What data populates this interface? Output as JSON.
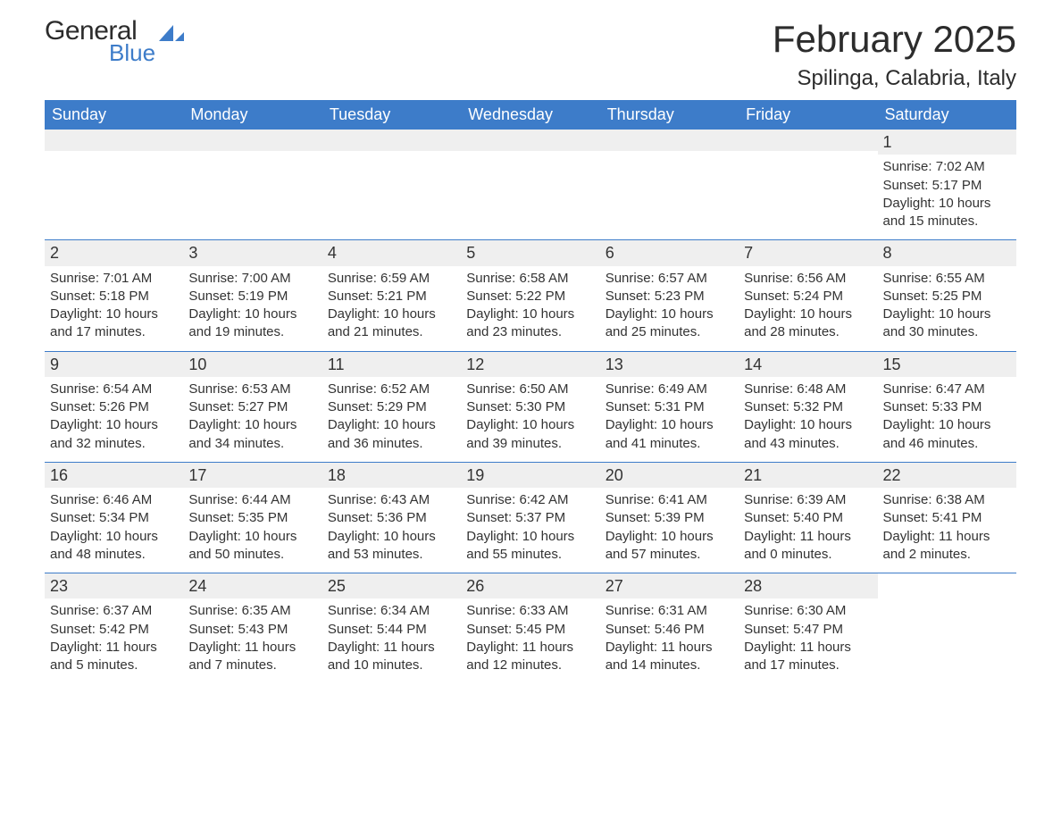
{
  "brand": {
    "general": "General",
    "blue": "Blue",
    "accent_color": "#3d7cc9"
  },
  "header": {
    "month_title": "February 2025",
    "location": "Spilinga, Calabria, Italy"
  },
  "styling": {
    "header_bg": "#3d7cc9",
    "header_text": "#ffffff",
    "daynum_bg": "#efefef",
    "week_border": "#3d7cc9",
    "body_text": "#333333",
    "page_bg": "#ffffff",
    "title_fontsize": 42,
    "location_fontsize": 24,
    "weekday_fontsize": 18,
    "daynum_fontsize": 18,
    "body_fontsize": 15
  },
  "weekdays": [
    "Sunday",
    "Monday",
    "Tuesday",
    "Wednesday",
    "Thursday",
    "Friday",
    "Saturday"
  ],
  "weeks": [
    [
      {
        "empty": true
      },
      {
        "empty": true
      },
      {
        "empty": true
      },
      {
        "empty": true
      },
      {
        "empty": true
      },
      {
        "empty": true
      },
      {
        "num": "1",
        "sunrise": "Sunrise: 7:02 AM",
        "sunset": "Sunset: 5:17 PM",
        "day1": "Daylight: 10 hours",
        "day2": "and 15 minutes."
      }
    ],
    [
      {
        "num": "2",
        "sunrise": "Sunrise: 7:01 AM",
        "sunset": "Sunset: 5:18 PM",
        "day1": "Daylight: 10 hours",
        "day2": "and 17 minutes."
      },
      {
        "num": "3",
        "sunrise": "Sunrise: 7:00 AM",
        "sunset": "Sunset: 5:19 PM",
        "day1": "Daylight: 10 hours",
        "day2": "and 19 minutes."
      },
      {
        "num": "4",
        "sunrise": "Sunrise: 6:59 AM",
        "sunset": "Sunset: 5:21 PM",
        "day1": "Daylight: 10 hours",
        "day2": "and 21 minutes."
      },
      {
        "num": "5",
        "sunrise": "Sunrise: 6:58 AM",
        "sunset": "Sunset: 5:22 PM",
        "day1": "Daylight: 10 hours",
        "day2": "and 23 minutes."
      },
      {
        "num": "6",
        "sunrise": "Sunrise: 6:57 AM",
        "sunset": "Sunset: 5:23 PM",
        "day1": "Daylight: 10 hours",
        "day2": "and 25 minutes."
      },
      {
        "num": "7",
        "sunrise": "Sunrise: 6:56 AM",
        "sunset": "Sunset: 5:24 PM",
        "day1": "Daylight: 10 hours",
        "day2": "and 28 minutes."
      },
      {
        "num": "8",
        "sunrise": "Sunrise: 6:55 AM",
        "sunset": "Sunset: 5:25 PM",
        "day1": "Daylight: 10 hours",
        "day2": "and 30 minutes."
      }
    ],
    [
      {
        "num": "9",
        "sunrise": "Sunrise: 6:54 AM",
        "sunset": "Sunset: 5:26 PM",
        "day1": "Daylight: 10 hours",
        "day2": "and 32 minutes."
      },
      {
        "num": "10",
        "sunrise": "Sunrise: 6:53 AM",
        "sunset": "Sunset: 5:27 PM",
        "day1": "Daylight: 10 hours",
        "day2": "and 34 minutes."
      },
      {
        "num": "11",
        "sunrise": "Sunrise: 6:52 AM",
        "sunset": "Sunset: 5:29 PM",
        "day1": "Daylight: 10 hours",
        "day2": "and 36 minutes."
      },
      {
        "num": "12",
        "sunrise": "Sunrise: 6:50 AM",
        "sunset": "Sunset: 5:30 PM",
        "day1": "Daylight: 10 hours",
        "day2": "and 39 minutes."
      },
      {
        "num": "13",
        "sunrise": "Sunrise: 6:49 AM",
        "sunset": "Sunset: 5:31 PM",
        "day1": "Daylight: 10 hours",
        "day2": "and 41 minutes."
      },
      {
        "num": "14",
        "sunrise": "Sunrise: 6:48 AM",
        "sunset": "Sunset: 5:32 PM",
        "day1": "Daylight: 10 hours",
        "day2": "and 43 minutes."
      },
      {
        "num": "15",
        "sunrise": "Sunrise: 6:47 AM",
        "sunset": "Sunset: 5:33 PM",
        "day1": "Daylight: 10 hours",
        "day2": "and 46 minutes."
      }
    ],
    [
      {
        "num": "16",
        "sunrise": "Sunrise: 6:46 AM",
        "sunset": "Sunset: 5:34 PM",
        "day1": "Daylight: 10 hours",
        "day2": "and 48 minutes."
      },
      {
        "num": "17",
        "sunrise": "Sunrise: 6:44 AM",
        "sunset": "Sunset: 5:35 PM",
        "day1": "Daylight: 10 hours",
        "day2": "and 50 minutes."
      },
      {
        "num": "18",
        "sunrise": "Sunrise: 6:43 AM",
        "sunset": "Sunset: 5:36 PM",
        "day1": "Daylight: 10 hours",
        "day2": "and 53 minutes."
      },
      {
        "num": "19",
        "sunrise": "Sunrise: 6:42 AM",
        "sunset": "Sunset: 5:37 PM",
        "day1": "Daylight: 10 hours",
        "day2": "and 55 minutes."
      },
      {
        "num": "20",
        "sunrise": "Sunrise: 6:41 AM",
        "sunset": "Sunset: 5:39 PM",
        "day1": "Daylight: 10 hours",
        "day2": "and 57 minutes."
      },
      {
        "num": "21",
        "sunrise": "Sunrise: 6:39 AM",
        "sunset": "Sunset: 5:40 PM",
        "day1": "Daylight: 11 hours",
        "day2": "and 0 minutes."
      },
      {
        "num": "22",
        "sunrise": "Sunrise: 6:38 AM",
        "sunset": "Sunset: 5:41 PM",
        "day1": "Daylight: 11 hours",
        "day2": "and 2 minutes."
      }
    ],
    [
      {
        "num": "23",
        "sunrise": "Sunrise: 6:37 AM",
        "sunset": "Sunset: 5:42 PM",
        "day1": "Daylight: 11 hours",
        "day2": "and 5 minutes."
      },
      {
        "num": "24",
        "sunrise": "Sunrise: 6:35 AM",
        "sunset": "Sunset: 5:43 PM",
        "day1": "Daylight: 11 hours",
        "day2": "and 7 minutes."
      },
      {
        "num": "25",
        "sunrise": "Sunrise: 6:34 AM",
        "sunset": "Sunset: 5:44 PM",
        "day1": "Daylight: 11 hours",
        "day2": "and 10 minutes."
      },
      {
        "num": "26",
        "sunrise": "Sunrise: 6:33 AM",
        "sunset": "Sunset: 5:45 PM",
        "day1": "Daylight: 11 hours",
        "day2": "and 12 minutes."
      },
      {
        "num": "27",
        "sunrise": "Sunrise: 6:31 AM",
        "sunset": "Sunset: 5:46 PM",
        "day1": "Daylight: 11 hours",
        "day2": "and 14 minutes."
      },
      {
        "num": "28",
        "sunrise": "Sunrise: 6:30 AM",
        "sunset": "Sunset: 5:47 PM",
        "day1": "Daylight: 11 hours",
        "day2": "and 17 minutes."
      },
      {
        "empty": true,
        "noBg": true
      }
    ]
  ]
}
